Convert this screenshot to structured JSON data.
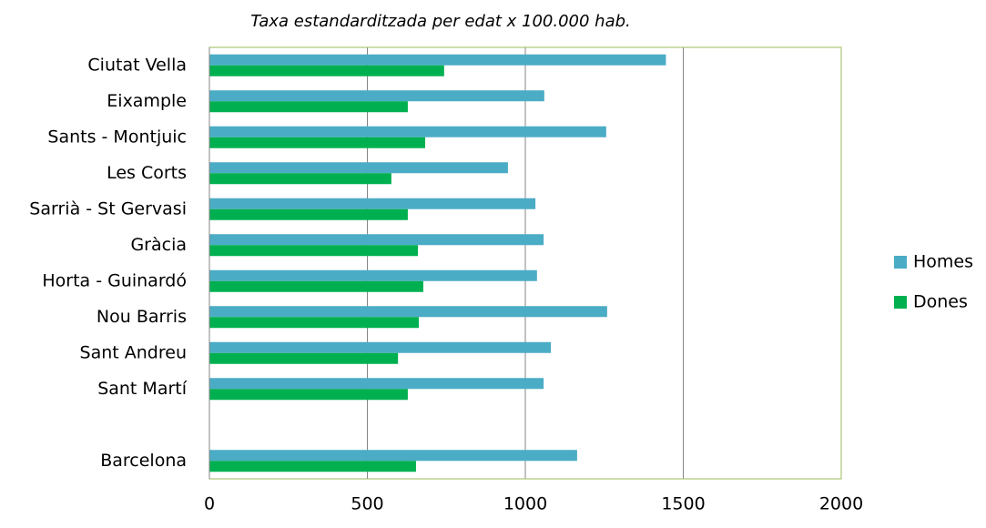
{
  "chart_data": {
    "type": "bar",
    "orientation": "horizontal",
    "title": "Taxa estandarditzada per edat x 100.000 hab.",
    "categories": [
      "Ciutat Vella",
      "Eixample",
      "Sants - Montjuic",
      "Les Corts",
      "Sarrià - St Gervasi",
      "Gràcia",
      "Horta - Guinardó",
      "Nou Barris",
      "Sant Andreu",
      "Sant Martí",
      null,
      "Barcelona"
    ],
    "series": [
      {
        "name": "Homes",
        "color": "#4bacc6",
        "values": [
          1445,
          1060,
          1256,
          945,
          1032,
          1058,
          1037,
          1259,
          1081,
          1058,
          null,
          1164
        ]
      },
      {
        "name": "Dones",
        "color": "#00b050",
        "values": [
          743,
          628,
          683,
          576,
          628,
          660,
          677,
          663,
          597,
          628,
          null,
          654
        ]
      }
    ],
    "xlim": [
      0,
      2000
    ],
    "xticks": [
      0,
      500,
      1000,
      1500,
      2000
    ],
    "grid": true,
    "legend": "right"
  }
}
